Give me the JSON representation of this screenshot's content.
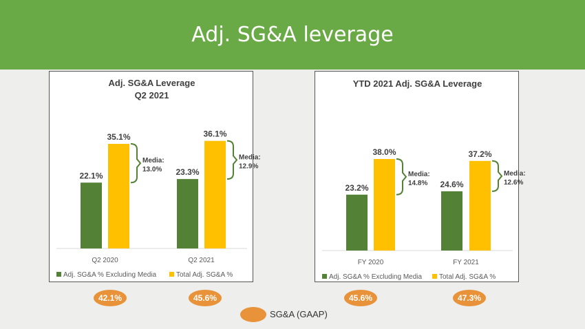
{
  "page": {
    "title": "Adj. SG&A leverage",
    "gaap_legend": "SG&A (GAAP)"
  },
  "colors": {
    "banner": "#6aaa46",
    "adj_excl_media": "#538135",
    "total_adj": "#ffc000",
    "bracket": "#538135",
    "gaap_pill": "#e8933a"
  },
  "chart_data": [
    {
      "type": "bar",
      "title": "Adj. SG&A Leverage",
      "subtitle": "Q2 2021",
      "categories": [
        "Q2 2020",
        "Q2 2021"
      ],
      "series": [
        {
          "name": "Adj. SG&A % Excluding Media",
          "values": [
            22.1,
            23.3
          ],
          "labels": [
            "22.1%",
            "23.3%"
          ]
        },
        {
          "name": "Total Adj. SG&A %",
          "values": [
            35.1,
            36.1
          ],
          "labels": [
            "35.1%",
            "36.1%"
          ]
        }
      ],
      "annotations": [
        {
          "line1": "Media:",
          "line2": "13.0%"
        },
        {
          "line1": "Media:",
          "line2": "12.9%"
        }
      ],
      "gaap": [
        "42.1%",
        "45.6%"
      ],
      "ylim": [
        0,
        40
      ],
      "grid": false,
      "legend_position": "bottom"
    },
    {
      "type": "bar",
      "title": "YTD 2021 Adj. SG&A Leverage",
      "subtitle": "",
      "categories": [
        "FY 2020",
        "FY 2021"
      ],
      "series": [
        {
          "name": "Adj. SG&A % Excluding Media",
          "values": [
            23.2,
            24.6
          ],
          "labels": [
            "23.2%",
            "24.6%"
          ]
        },
        {
          "name": "Total Adj. SG&A %",
          "values": [
            38.0,
            37.2
          ],
          "labels": [
            "38.0%",
            "37.2%"
          ]
        }
      ],
      "annotations": [
        {
          "line1": "Media:",
          "line2": "14.8%"
        },
        {
          "line1": "Media:",
          "line2": "12.6%"
        }
      ],
      "gaap": [
        "45.6%",
        "47.3%"
      ],
      "ylim": [
        0,
        40
      ],
      "grid": false,
      "legend_position": "bottom"
    }
  ]
}
